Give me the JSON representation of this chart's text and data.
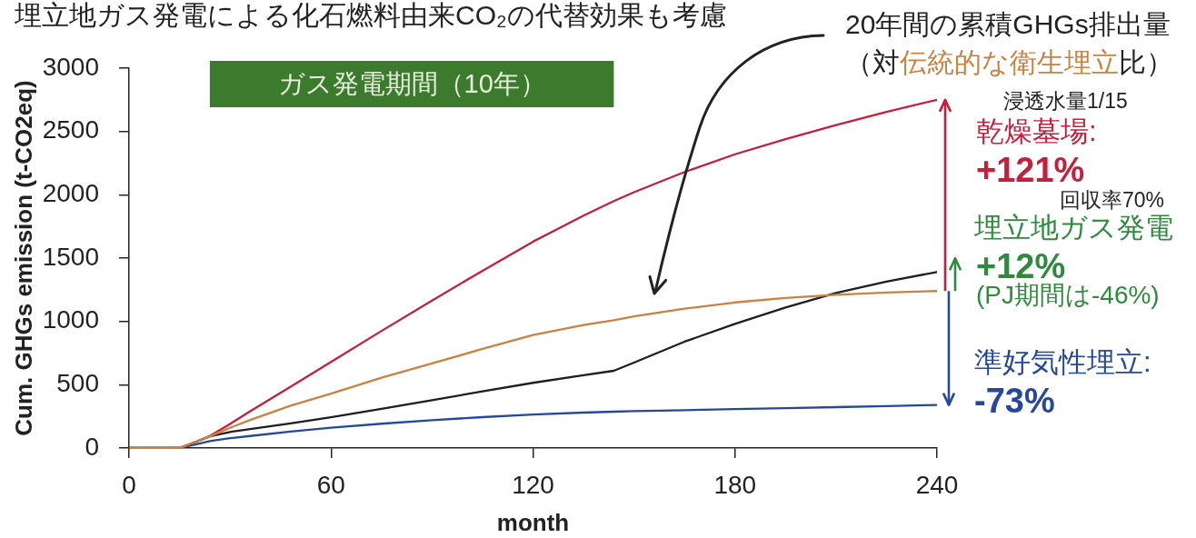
{
  "chart_data": {
    "type": "line",
    "title": "埋立地ガス発電による化石燃料由来CO₂の代替効果も考慮",
    "xlabel": "month",
    "ylabel": "Cum. GHGs emission (t-CO2eq)",
    "x": [
      0,
      15,
      20,
      24,
      30,
      36,
      48,
      60,
      75,
      90,
      105,
      120,
      135,
      144,
      150,
      165,
      180,
      195,
      210,
      225,
      240
    ],
    "series": [
      {
        "name": "伝統的な衛生埋立",
        "color": "#c9823f",
        "values": [
          0,
          0,
          50,
          92,
          160,
          222,
          335,
          430,
          555,
          668,
          783,
          893,
          972,
          1010,
          1040,
          1100,
          1150,
          1185,
          1210,
          1228,
          1240
        ]
      },
      {
        "name": "乾燥墓場:",
        "color": "#c4203e",
        "values": [
          0,
          0,
          50,
          95,
          190,
          290,
          485,
          680,
          925,
          1165,
          1400,
          1630,
          1835,
          1950,
          2020,
          2180,
          2320,
          2440,
          2550,
          2655,
          2750
        ]
      },
      {
        "color": "#1e1e1e",
        "values": [
          0,
          0,
          50,
          92,
          127,
          150,
          195,
          243,
          310,
          378,
          447,
          515,
          575,
          610,
          675,
          840,
          980,
          1110,
          1225,
          1315,
          1390
        ]
      },
      {
        "name": "準好気性埋立:",
        "color": "#27489a",
        "values": [
          0,
          0,
          30,
          55,
          78,
          95,
          130,
          160,
          192,
          220,
          244,
          265,
          280,
          287,
          291,
          299,
          307,
          315,
          323,
          331,
          340
        ]
      }
    ],
    "xlim": [
      0,
      240
    ],
    "xticks": [
      0,
      60,
      120,
      180,
      240
    ],
    "ylim": [
      0,
      3000
    ],
    "yticks": [
      0,
      500,
      1000,
      1500,
      2000,
      2500,
      3000
    ],
    "bands": [
      {
        "axis": "x",
        "from": 24,
        "to": 144,
        "label": "ガス発電期間（10年）",
        "color": "#3c7a2e"
      }
    ],
    "annotations": [
      "20年間の累積GHGs排出量",
      "（対",
      "比）",
      "浸透水量1/15",
      "+121%",
      "回収率70%",
      "埋立地ガス発電",
      "+12%",
      "(PJ期間は-46%)",
      "-73%"
    ]
  }
}
